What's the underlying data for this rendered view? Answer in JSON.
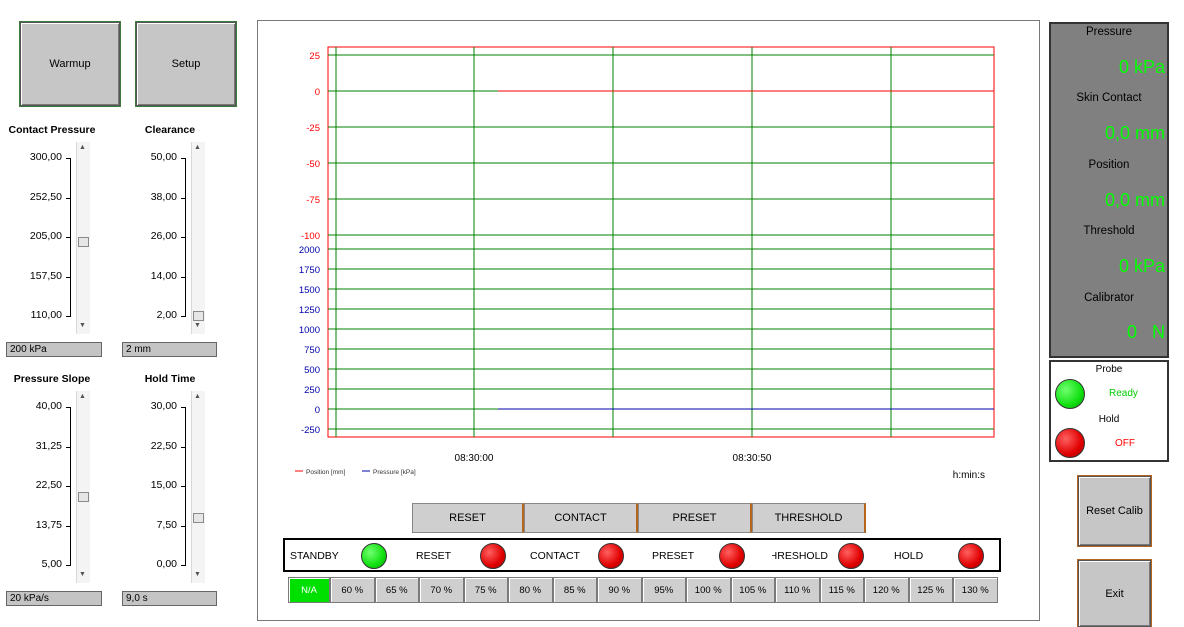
{
  "top_buttons": {
    "warmup": "Warmup",
    "setup": "Setup"
  },
  "controls": {
    "contact_pressure": {
      "title": "Contact Pressure",
      "ticks": [
        "300,00",
        "252,50",
        "205,00",
        "157,50",
        "110,00"
      ],
      "value": "200 kPa",
      "level": 0.47
    },
    "clearance": {
      "title": "Clearance",
      "ticks": [
        "50,00",
        "38,00",
        "26,00",
        "14,00",
        "2,00"
      ],
      "value": "2 mm",
      "level": 0.0
    },
    "pressure_slope": {
      "title": "Pressure Slope",
      "ticks": [
        "40,00",
        "31,25",
        "22,50",
        "13,75",
        "5,00"
      ],
      "value": "20 kPa/s",
      "level": 0.43
    },
    "hold_time": {
      "title": "Hold Time",
      "ticks": [
        "30,00",
        "22,50",
        "15,00",
        "7,50",
        "0,00"
      ],
      "value": "9,0 s",
      "level": 0.3
    }
  },
  "chart": {
    "position_ticks": [
      "25",
      "0",
      "-25",
      "-50",
      "-75",
      "-100"
    ],
    "pressure_ticks": [
      "2000",
      "1750",
      "1500",
      "1250",
      "1000",
      "750",
      "500",
      "250",
      "0",
      "-250"
    ],
    "x_ticks": [
      "08:30:00",
      "08:30:50"
    ],
    "x_unit": "h:min:s",
    "legend": {
      "position": "Position [mm]",
      "pressure": "Pressure [kPa]"
    },
    "colors": {
      "position": "#ff0000",
      "pressure": "#0000aa",
      "grid": "#008000"
    }
  },
  "chart_data": [
    {
      "type": "line",
      "x": [
        "08:30:00",
        "08:30:50"
      ],
      "series": [
        {
          "name": "Position [mm]",
          "values": [
            0,
            0
          ]
        },
        {
          "name": "Pressure [kPa]",
          "values": [
            0,
            0
          ]
        }
      ],
      "ylim_position": [
        -100,
        25
      ],
      "ylim_pressure": [
        -250,
        2000
      ],
      "xlabel": "h:min:s",
      "grid": true,
      "legend": "bottom-left"
    }
  ],
  "commands": [
    "RESET",
    "CONTACT",
    "PRESET",
    "THRESHOLD"
  ],
  "status": [
    {
      "label": "STANDBY",
      "state": "green"
    },
    {
      "label": "RESET",
      "state": "red"
    },
    {
      "label": "CONTACT",
      "state": "red"
    },
    {
      "label": "PRESET",
      "state": "red"
    },
    {
      "label": "THRESHOLD",
      "state": "red"
    },
    {
      "label": "HOLD",
      "state": "red"
    }
  ],
  "percent_buttons": [
    "N/A",
    "60 %",
    "65 %",
    "70 %",
    "75 %",
    "80 %",
    "85 %",
    "90 %",
    "95%",
    "100 %",
    "105 %",
    "110 %",
    "115 %",
    "120 %",
    "125 %",
    "130 %"
  ],
  "readouts": {
    "pressure": {
      "label": "Pressure",
      "value": "0 kPa"
    },
    "skin_contact": {
      "label": "Skin Contact",
      "value": "0,0 mm"
    },
    "position": {
      "label": "Position",
      "value": "0,0 mm"
    },
    "threshold": {
      "label": "Threshold",
      "value": "0 kPa"
    },
    "calibrator": {
      "label": "Calibrator",
      "value": "0   N"
    }
  },
  "indicators": {
    "probe": {
      "label": "Probe",
      "status": "Ready",
      "color": "#00cc00"
    },
    "hold": {
      "label": "Hold",
      "status": "OFF",
      "color": "#ff0000"
    }
  },
  "side_buttons": {
    "reset_calib": "Reset Calib",
    "exit": "Exit"
  }
}
